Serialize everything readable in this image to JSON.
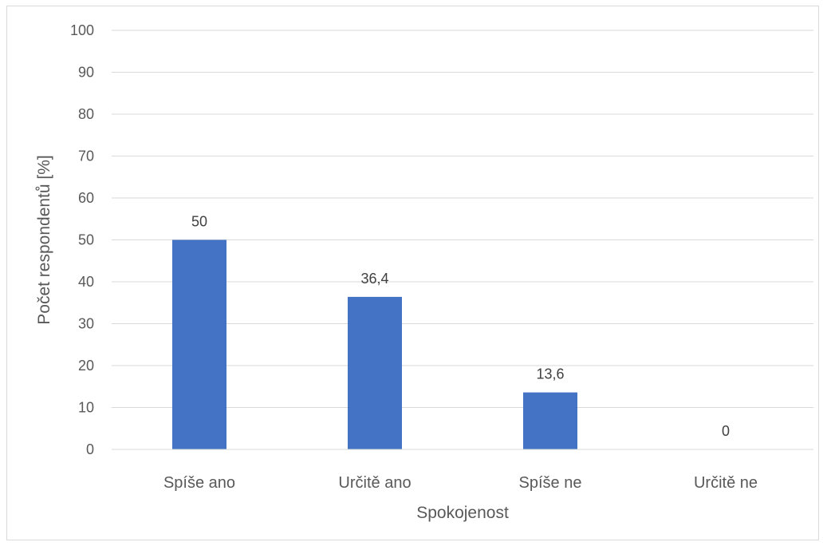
{
  "chart_data": {
    "type": "bar",
    "categories": [
      "Spíše ano",
      "Určitě ano",
      "Spíše ne",
      "Určitě ne"
    ],
    "values": [
      50,
      36.4,
      13.6,
      0
    ],
    "data_labels": [
      "50",
      "36,4",
      "13,6",
      "0"
    ],
    "xlabel": "Spokojenost",
    "ylabel": "Počet respondentů [%]",
    "ylim": [
      0,
      100
    ],
    "yticks": [
      0,
      10,
      20,
      30,
      40,
      50,
      60,
      70,
      80,
      90,
      100
    ],
    "grid": true,
    "legend": "none",
    "bar_color": "#4472c4",
    "grid_color": "#d9d9d9"
  }
}
